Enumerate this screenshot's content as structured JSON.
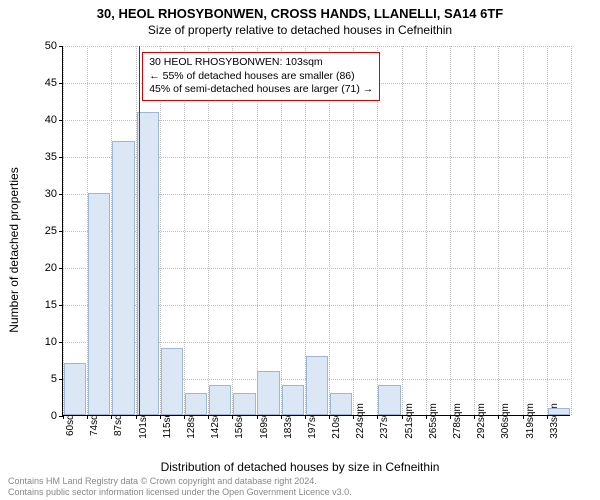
{
  "title_main": "30, HEOL RHOSYBONWEN, CROSS HANDS, LLANELLI, SA14 6TF",
  "title_sub": "Size of property relative to detached houses in Cefneithin",
  "chart": {
    "type": "histogram",
    "ylim": [
      0,
      50
    ],
    "ytick_step": 5,
    "ylabel": "Number of detached properties",
    "xlabel": "Distribution of detached houses by size in Cefneithin",
    "categories": [
      "60sqm",
      "74sqm",
      "87sqm",
      "101sqm",
      "115sqm",
      "128sqm",
      "142sqm",
      "156sqm",
      "169sqm",
      "183sqm",
      "197sqm",
      "210sqm",
      "224sqm",
      "237sqm",
      "251sqm",
      "265sqm",
      "278sqm",
      "292sqm",
      "306sqm",
      "319sqm",
      "333sqm"
    ],
    "values": [
      7,
      30,
      37,
      41,
      9,
      3,
      4,
      3,
      6,
      4,
      8,
      3,
      0,
      4,
      0,
      0,
      0,
      0,
      0,
      0,
      1
    ],
    "bar_color": "#dbe7f5",
    "bar_border": "#9db7d6",
    "bar_width": 0.92,
    "grid_color": "#bfbfbf",
    "background_color": "#ffffff",
    "marker_position_index": 3.15,
    "marker_color": "#e00000"
  },
  "info_box": {
    "line1": "30 HEOL RHOSYBONWEN: 103sqm",
    "line2": "← 55% of detached houses are smaller (86)",
    "line3": "45% of semi-detached houses are larger (71) →",
    "border_color": "#e00000"
  },
  "attribution": {
    "line1": "Contains HM Land Registry data © Crown copyright and database right 2024.",
    "line2": "Contains public sector information licensed under the Open Government Licence v3.0."
  }
}
